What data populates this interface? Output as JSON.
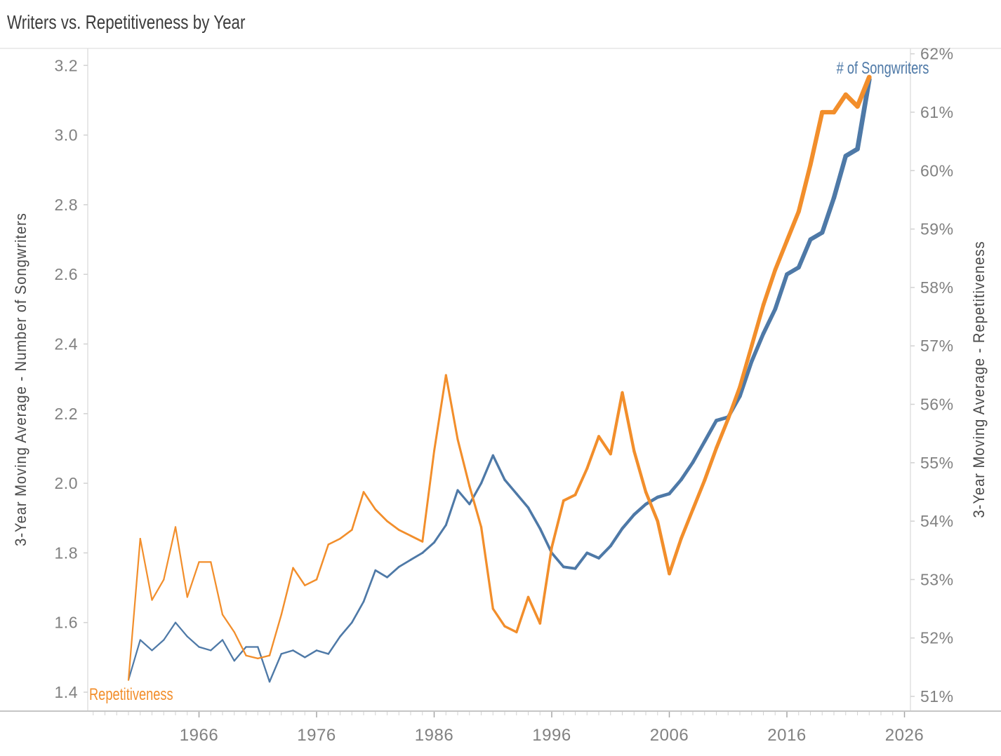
{
  "page": {
    "title": "Writers vs. Repetitiveness by Year"
  },
  "chart_data": {
    "type": "line",
    "title": "Writers vs. Repetitiveness by Year",
    "grid": false,
    "legend": "inline-mark-labels",
    "x": [
      1960,
      1961,
      1962,
      1963,
      1964,
      1965,
      1966,
      1967,
      1968,
      1969,
      1970,
      1971,
      1972,
      1973,
      1974,
      1975,
      1976,
      1977,
      1978,
      1979,
      1980,
      1981,
      1982,
      1983,
      1984,
      1985,
      1986,
      1987,
      1988,
      1989,
      1990,
      1991,
      1992,
      1993,
      1994,
      1995,
      1996,
      1997,
      1998,
      1999,
      2000,
      2001,
      2002,
      2003,
      2004,
      2005,
      2006,
      2007,
      2008,
      2009,
      2010,
      2011,
      2012,
      2013,
      2014,
      2015,
      2016,
      2017,
      2018,
      2019,
      2020,
      2021,
      2022,
      2023
    ],
    "series": [
      {
        "name": "# of Songwriters",
        "axis": "left",
        "color": "#4E79A7",
        "values": [
          1.435,
          1.55,
          1.52,
          1.55,
          1.6,
          1.56,
          1.53,
          1.52,
          1.55,
          1.49,
          1.53,
          1.53,
          1.43,
          1.51,
          1.52,
          1.5,
          1.52,
          1.51,
          1.56,
          1.6,
          1.66,
          1.75,
          1.73,
          1.76,
          1.78,
          1.8,
          1.83,
          1.88,
          1.98,
          1.94,
          2.0,
          2.08,
          2.01,
          1.97,
          1.93,
          1.87,
          1.8,
          1.76,
          1.755,
          1.8,
          1.785,
          1.82,
          1.87,
          1.91,
          1.94,
          1.96,
          1.97,
          2.01,
          2.06,
          2.12,
          2.18,
          2.19,
          2.25,
          2.35,
          2.43,
          2.5,
          2.6,
          2.62,
          2.7,
          2.72,
          2.82,
          2.94,
          2.96,
          3.16
        ]
      },
      {
        "name": "Repetitiveness",
        "axis": "right",
        "color": "#F28E2B",
        "values": [
          51.28,
          53.7,
          52.65,
          53.0,
          53.9,
          52.7,
          53.3,
          53.3,
          52.4,
          52.1,
          51.7,
          51.65,
          51.7,
          52.4,
          53.2,
          52.9,
          53.0,
          53.6,
          53.7,
          53.85,
          54.5,
          54.2,
          54.0,
          53.85,
          53.75,
          53.65,
          55.2,
          56.5,
          55.4,
          54.6,
          53.9,
          52.5,
          52.2,
          52.1,
          52.7,
          52.25,
          53.55,
          54.35,
          54.45,
          54.9,
          55.45,
          55.15,
          56.2,
          55.2,
          54.5,
          54.0,
          53.1,
          53.7,
          54.2,
          54.7,
          55.25,
          55.75,
          56.3,
          57.0,
          57.7,
          58.3,
          58.8,
          59.3,
          60.1,
          61.0,
          61.0,
          61.3,
          61.1,
          61.6
        ]
      }
    ],
    "left_axis": {
      "label": "3-Year Moving Average - Number of Songwriters",
      "min": 1.4,
      "max": 3.2,
      "ticks": [
        1.4,
        1.6,
        1.8,
        2.0,
        2.2,
        2.4,
        2.6,
        2.8,
        3.0,
        3.2
      ],
      "tick_labels": [
        "1.4",
        "1.6",
        "1.8",
        "2.0",
        "2.2",
        "2.4",
        "2.6",
        "2.8",
        "3.0",
        "3.2"
      ]
    },
    "right_axis": {
      "label": "3-Year Moving Average - Repetitiveness",
      "min": 51,
      "max": 62,
      "ticks": [
        51,
        52,
        53,
        54,
        55,
        56,
        57,
        58,
        59,
        60,
        61,
        62
      ],
      "tick_labels": [
        "51%",
        "52%",
        "53%",
        "54%",
        "55%",
        "56%",
        "57%",
        "58%",
        "59%",
        "60%",
        "61%",
        "62%"
      ]
    },
    "x_axis": {
      "major_ticks": [
        1966,
        1976,
        1986,
        1996,
        2006,
        2016,
        2026
      ],
      "tick_labels": [
        "1966",
        "1976",
        "1986",
        "1996",
        "2006",
        "2016",
        "2026"
      ],
      "minor_tick_start": 1957,
      "minor_tick_end": 2026
    },
    "annotations": {
      "songwriters_label": "# of Songwriters",
      "repetitiveness_label": "Repetitiveness"
    },
    "colors": {
      "title_text": "#3c3c3c",
      "axis_title_text": "#4a4a4a",
      "tick_text": "#818181",
      "frame_line": "#d9d9d9",
      "bottom_axis_line": "#c6c6c6",
      "minor_tick": "#d2d2d2",
      "major_tick": "#a6a6a6"
    }
  }
}
